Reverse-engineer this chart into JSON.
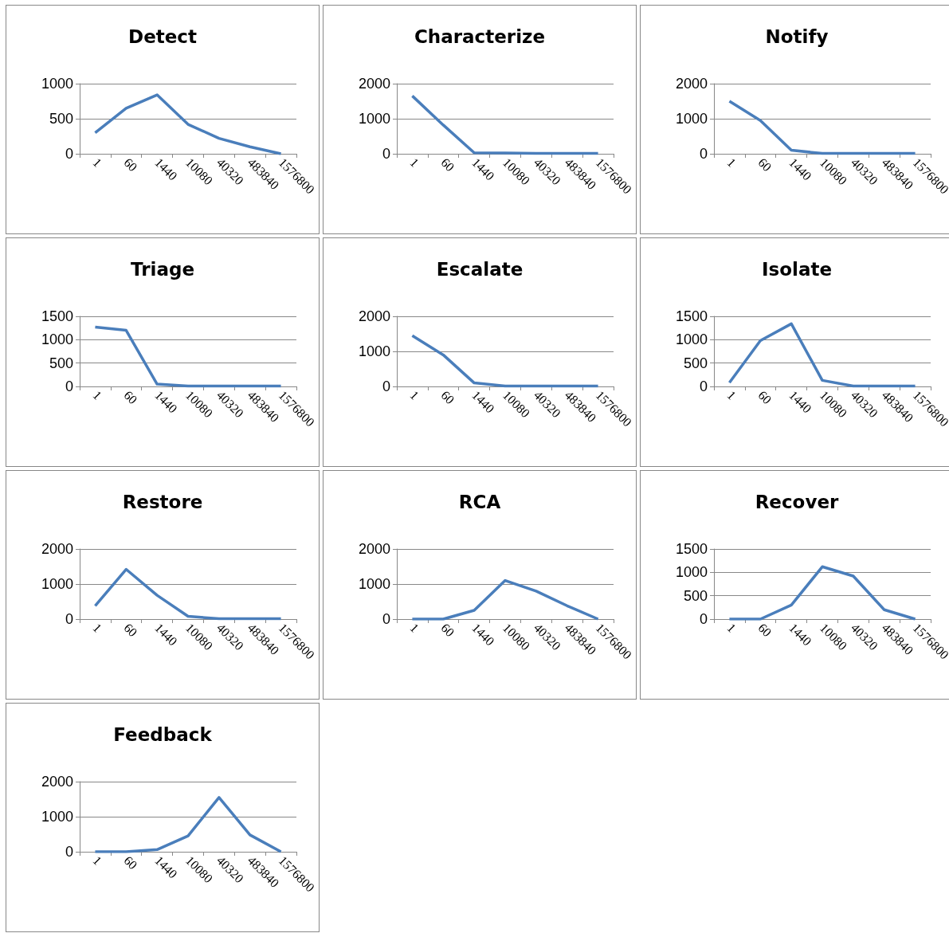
{
  "chart_data": [
    {
      "type": "line",
      "title": "Detect",
      "categories": [
        "1",
        "60",
        "1440",
        "10080",
        "40320",
        "483840",
        "1576800"
      ],
      "values": [
        300,
        650,
        840,
        420,
        220,
        100,
        0
      ],
      "color": "#4a7ebb",
      "ylim": [
        0,
        1000
      ],
      "yticks": [
        0,
        500,
        1000
      ],
      "grid": "y",
      "marker": "none"
    },
    {
      "type": "line",
      "title": "Characterize",
      "categories": [
        "1",
        "60",
        "1440",
        "10080",
        "40320",
        "483840",
        "1576800"
      ],
      "values": [
        1650,
        820,
        30,
        20,
        10,
        10,
        10
      ],
      "color": "#4a7ebb",
      "ylim": [
        0,
        2000
      ],
      "yticks": [
        0,
        1000,
        2000
      ],
      "grid": "y",
      "marker": "none"
    },
    {
      "type": "line",
      "title": "Notify",
      "categories": [
        "1",
        "60",
        "1440",
        "10080",
        "40320",
        "483840",
        "1576800"
      ],
      "values": [
        1500,
        950,
        100,
        10,
        10,
        10,
        10
      ],
      "color": "#4a7ebb",
      "ylim": [
        0,
        2000
      ],
      "yticks": [
        0,
        1000,
        2000
      ],
      "grid": "y",
      "marker": "none"
    },
    {
      "type": "line",
      "title": "Triage",
      "categories": [
        "1",
        "60",
        "1440",
        "10080",
        "40320",
        "483840",
        "1576800"
      ],
      "values": [
        1270,
        1200,
        50,
        10,
        10,
        10,
        10
      ],
      "color": "#4a7ebb",
      "ylim": [
        0,
        1500
      ],
      "yticks": [
        0,
        500,
        1000,
        1500
      ],
      "grid": "y",
      "marker": "none"
    },
    {
      "type": "line",
      "title": "Escalate",
      "categories": [
        "1",
        "60",
        "1440",
        "10080",
        "40320",
        "483840",
        "1576800"
      ],
      "values": [
        1450,
        900,
        100,
        10,
        10,
        10,
        10
      ],
      "color": "#4a7ebb",
      "ylim": [
        0,
        2000
      ],
      "yticks": [
        0,
        1000,
        2000
      ],
      "grid": "y",
      "marker": "none"
    },
    {
      "type": "line",
      "title": "Isolate",
      "categories": [
        "1",
        "60",
        "1440",
        "10080",
        "40320",
        "483840",
        "1576800"
      ],
      "values": [
        80,
        980,
        1340,
        130,
        10,
        10,
        10
      ],
      "color": "#4a7ebb",
      "ylim": [
        0,
        1500
      ],
      "yticks": [
        0,
        500,
        1000,
        1500
      ],
      "grid": "y",
      "marker": "none"
    },
    {
      "type": "line",
      "title": "Restore",
      "categories": [
        "1",
        "60",
        "1440",
        "10080",
        "40320",
        "483840",
        "1576800"
      ],
      "values": [
        380,
        1420,
        680,
        80,
        10,
        10,
        10
      ],
      "color": "#4a7ebb",
      "ylim": [
        0,
        2000
      ],
      "yticks": [
        0,
        1000,
        2000
      ],
      "grid": "y",
      "marker": "none"
    },
    {
      "type": "line",
      "title": "RCA",
      "categories": [
        "1",
        "60",
        "1440",
        "10080",
        "40320",
        "483840",
        "1576800"
      ],
      "values": [
        0,
        0,
        250,
        1100,
        800,
        380,
        0
      ],
      "color": "#4a7ebb",
      "ylim": [
        0,
        2000
      ],
      "yticks": [
        0,
        1000,
        2000
      ],
      "grid": "y",
      "marker": "none"
    },
    {
      "type": "line",
      "title": "Recover",
      "categories": [
        "1",
        "60",
        "1440",
        "10080",
        "40320",
        "483840",
        "1576800"
      ],
      "values": [
        0,
        0,
        300,
        1120,
        920,
        200,
        0
      ],
      "color": "#4a7ebb",
      "ylim": [
        0,
        1500
      ],
      "yticks": [
        0,
        500,
        1000,
        1500
      ],
      "grid": "y",
      "marker": "none"
    },
    {
      "type": "line",
      "title": "Feedback",
      "categories": [
        "1",
        "60",
        "1440",
        "10080",
        "40320",
        "483840",
        "1576800"
      ],
      "values": [
        0,
        0,
        60,
        450,
        1550,
        480,
        0
      ],
      "color": "#4a7ebb",
      "ylim": [
        0,
        2000
      ],
      "yticks": [
        0,
        1000,
        2000
      ],
      "grid": "y",
      "marker": "none"
    }
  ]
}
